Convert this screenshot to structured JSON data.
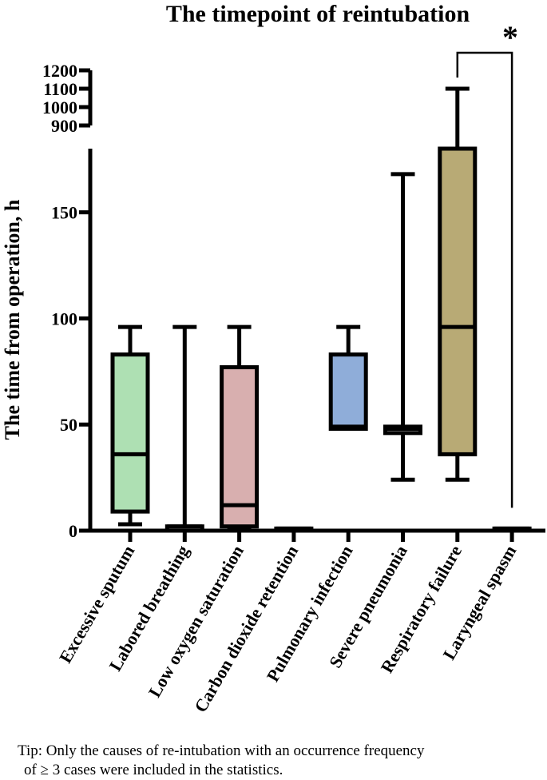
{
  "chart_data": {
    "type": "box",
    "title": "The timepoint of reintubation",
    "ylabel": "The time from operation, h",
    "xlabel": "",
    "axis_lower": {
      "range": [
        0,
        180
      ],
      "ticks": [
        0,
        50,
        100,
        150
      ]
    },
    "axis_upper": {
      "range": [
        900,
        1200
      ],
      "ticks": [
        900,
        1000,
        1100,
        1200
      ]
    },
    "categories": [
      "Excessive sputum",
      "Labored breathing",
      "Low oxygen saturation",
      "Carbon dioxide retention",
      "Pulmonary infection",
      "Severe pneumonia",
      "Respiratory failure",
      "Laryngeal spasm"
    ],
    "boxes": [
      {
        "category": "Excessive sputum",
        "min": 3,
        "q1": 9,
        "median": 36,
        "q3": 83,
        "max": 96,
        "color": "#aee0b3"
      },
      {
        "category": "Labored breathing",
        "min": 0,
        "q1": 0,
        "median": 2,
        "q3": 2,
        "max": 96,
        "color": "#ffffff"
      },
      {
        "category": "Low oxygen saturation",
        "min": 1,
        "q1": 2,
        "median": 12,
        "q3": 77,
        "max": 96,
        "color": "#d8afaf"
      },
      {
        "category": "Carbon dioxide retention",
        "min": 1,
        "q1": 1,
        "median": 1,
        "q3": 1,
        "max": 1,
        "color": "#ffffff"
      },
      {
        "category": "Pulmonary infection",
        "min": 48,
        "q1": 48,
        "median": 49,
        "q3": 83,
        "max": 96,
        "color": "#8fadd9"
      },
      {
        "category": "Severe pneumonia",
        "min": 24,
        "q1": 46,
        "median": 48,
        "q3": 49,
        "max": 168,
        "color": "#ffffff"
      },
      {
        "category": "Respiratory failure",
        "min": 24,
        "q1": 36,
        "median": 96,
        "q3": 180,
        "max": 1100,
        "color": "#b8aa75"
      },
      {
        "category": "Laryngeal spasm",
        "min": 1,
        "q1": 1,
        "median": 1,
        "q3": 1,
        "max": 1,
        "color": "#ffffff"
      }
    ],
    "significance": {
      "between": [
        "Respiratory failure",
        "Laryngeal spasm"
      ],
      "label": "*"
    },
    "grid": false,
    "legend": "none"
  },
  "footnote": {
    "line1": "Tip: Only the causes of re-intubation with an occurrence frequency",
    "line2": "of ≥ 3 cases were included in the statistics."
  }
}
